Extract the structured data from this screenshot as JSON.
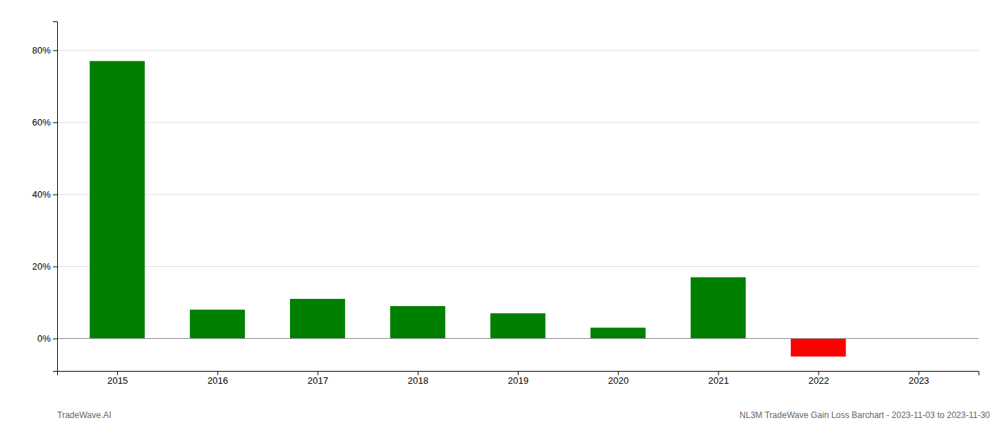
{
  "chart_data": {
    "type": "bar",
    "x": [
      2015,
      2016,
      2017,
      2018,
      2019,
      2020,
      2021,
      2022,
      2023
    ],
    "values": [
      0.77,
      0.08,
      0.11,
      0.09,
      0.07,
      0.03,
      0.17,
      -0.05,
      null
    ],
    "colors": [
      "#008000",
      "#008000",
      "#008000",
      "#008000",
      "#008000",
      "#008000",
      "#008000",
      "#ff0000",
      null
    ],
    "xlim": [
      2014.4,
      2023.6
    ],
    "xticks": [
      2015,
      2016,
      2017,
      2018,
      2019,
      2020,
      2021,
      2022,
      2023
    ],
    "ylim": [
      -0.09,
      0.88
    ],
    "yticks": [
      {
        "value": 0.0,
        "label": "0%"
      },
      {
        "value": 0.2,
        "label": "20%"
      },
      {
        "value": 0.4,
        "label": "40%"
      },
      {
        "value": 0.6,
        "label": "60%"
      },
      {
        "value": 0.8,
        "label": "80%"
      }
    ],
    "grid": true,
    "annotations": [
      "TradeWave.AI",
      "NL3M TradeWave Gain Loss Barchart - 2023-11-03 to 2023-11-30"
    ]
  }
}
